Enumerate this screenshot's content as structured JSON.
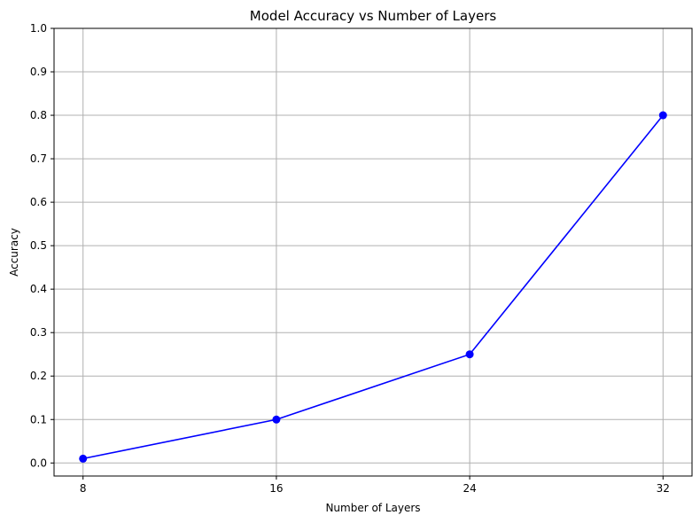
{
  "chart_data": {
    "type": "line",
    "title": "Model Accuracy vs Number of Layers",
    "xlabel": "Number of Layers",
    "ylabel": "Accuracy",
    "x": [
      8,
      16,
      24,
      32
    ],
    "xticks": [
      "8",
      "16",
      "24",
      "32"
    ],
    "ylim": [
      0.0,
      1.0
    ],
    "yticks": [
      "0.0",
      "0.1",
      "0.2",
      "0.3",
      "0.4",
      "0.5",
      "0.6",
      "0.7",
      "0.8",
      "0.9",
      "1.0"
    ],
    "grid": true,
    "series": [
      {
        "values": [
          0.01,
          0.1,
          0.25,
          0.8
        ],
        "color": "#0000ff",
        "marker": "circle"
      }
    ],
    "grid_color": "#b0b0b0"
  }
}
